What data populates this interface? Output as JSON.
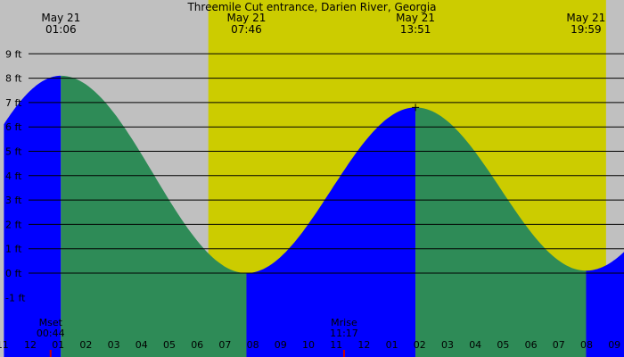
{
  "chart_data": {
    "type": "area",
    "title": "Threemile Cut entrance, Darien River, Georgia",
    "y_unit": "ft",
    "ylim": [
      -2,
      9.5
    ],
    "y_ticks": [
      -1,
      0,
      1,
      2,
      3,
      4,
      5,
      6,
      7,
      8,
      9
    ],
    "x_hours_range": [
      -0.95,
      21.6
    ],
    "x_tick_labels": [
      "11",
      "12",
      "01",
      "02",
      "03",
      "04",
      "05",
      "06",
      "07",
      "08",
      "09",
      "10",
      "11",
      "12",
      "01",
      "02",
      "03",
      "04",
      "05",
      "06",
      "07",
      "08",
      "09"
    ],
    "x_tick_hours": [
      -1,
      0,
      1,
      2,
      3,
      4,
      5,
      6,
      7,
      8,
      9,
      10,
      11,
      12,
      13,
      14,
      15,
      16,
      17,
      18,
      19,
      20,
      21
    ],
    "daylight": {
      "sunrise_hour": 6.4,
      "sunset_hour": 20.7
    },
    "events": [
      {
        "type": "high",
        "date": "May 21",
        "time": "01:06",
        "hour": 1.1,
        "height_ft": 8.1
      },
      {
        "type": "low",
        "date": "May 21",
        "time": "07:46",
        "hour": 7.77,
        "height_ft": 0.0
      },
      {
        "type": "high",
        "date": "May 21",
        "time": "13:51",
        "hour": 13.85,
        "height_ft": 6.8
      },
      {
        "type": "low",
        "date": "May 21",
        "time": "19:59",
        "hour": 19.98,
        "height_ft": 0.1
      }
    ],
    "moon": [
      {
        "label": "Mset",
        "time": "00:44",
        "hour": 0.73
      },
      {
        "label": "Mrise",
        "time": "11:17",
        "hour": 11.28
      }
    ],
    "colors": {
      "night": "#c0c0c0",
      "day": "#cccc00",
      "rising": "#0000ff",
      "falling": "#2e8b57",
      "gridline": "#000000",
      "moon_mark": "#cc0000"
    }
  }
}
